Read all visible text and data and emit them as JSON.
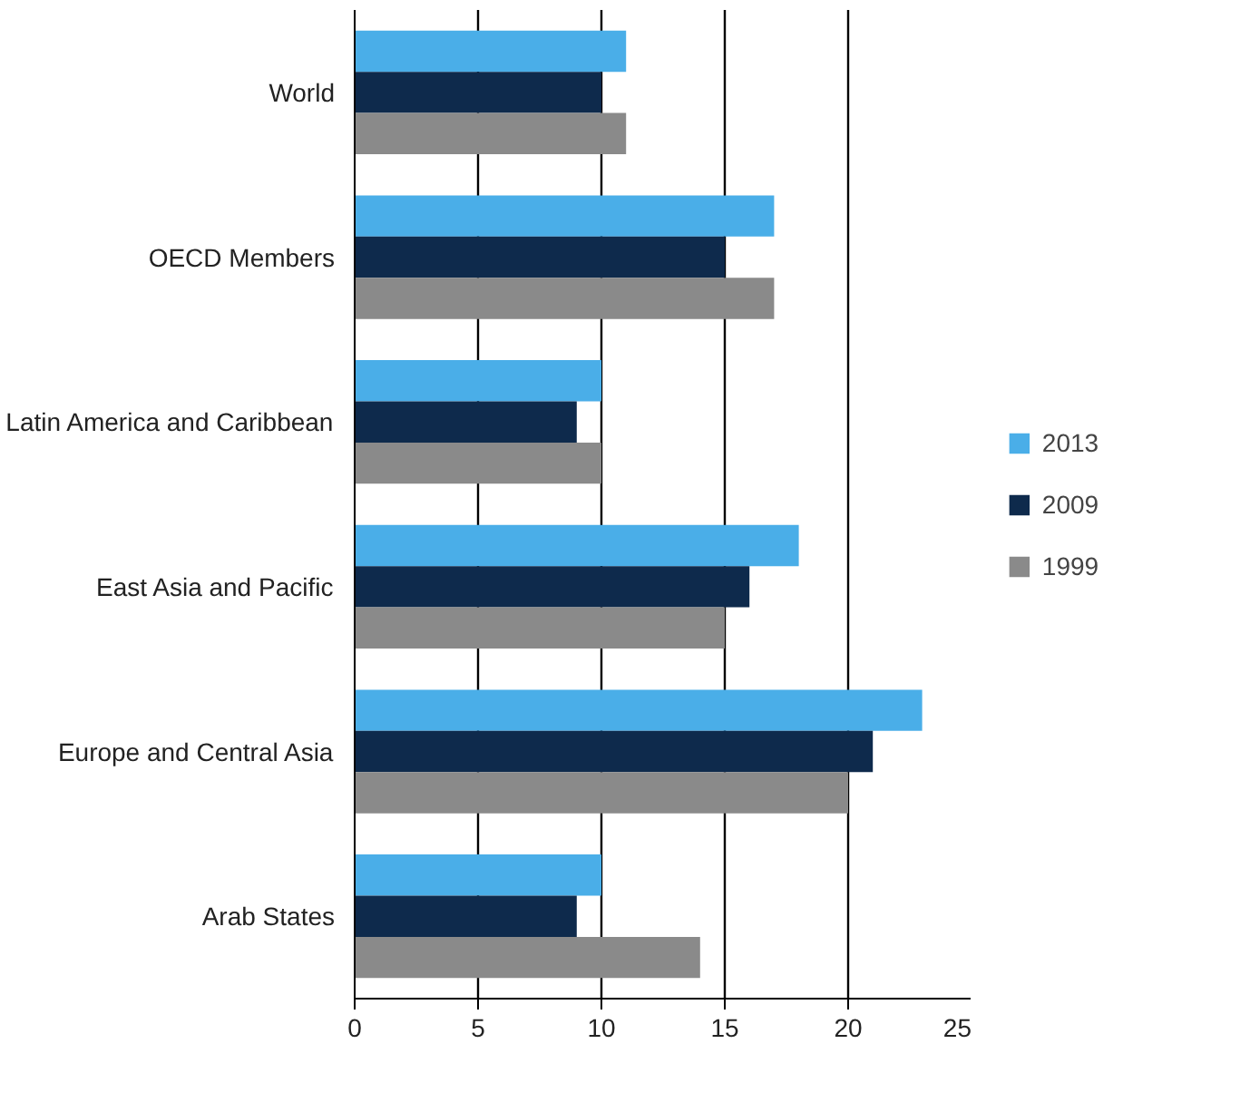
{
  "chart_data": {
    "type": "bar",
    "orientation": "horizontal",
    "categories": [
      "World",
      "OECD Members",
      "Latin America and Caribbean",
      "East Asia and Pacific",
      "Europe and Central Asia",
      "Arab States"
    ],
    "series": [
      {
        "name": "2013",
        "color": "#4aaee8",
        "values": [
          11,
          17,
          10,
          18,
          23,
          10
        ]
      },
      {
        "name": "2009",
        "color": "#0e2a4c",
        "values": [
          10,
          15,
          9,
          16,
          21,
          9
        ]
      },
      {
        "name": "1999",
        "color": "#8a8a8a",
        "values": [
          11,
          17,
          10,
          15,
          20,
          14
        ]
      }
    ],
    "xlim": [
      0,
      25
    ],
    "xticks": [
      0,
      5,
      10,
      15,
      20,
      25
    ],
    "grid": "x",
    "legend": "right"
  }
}
